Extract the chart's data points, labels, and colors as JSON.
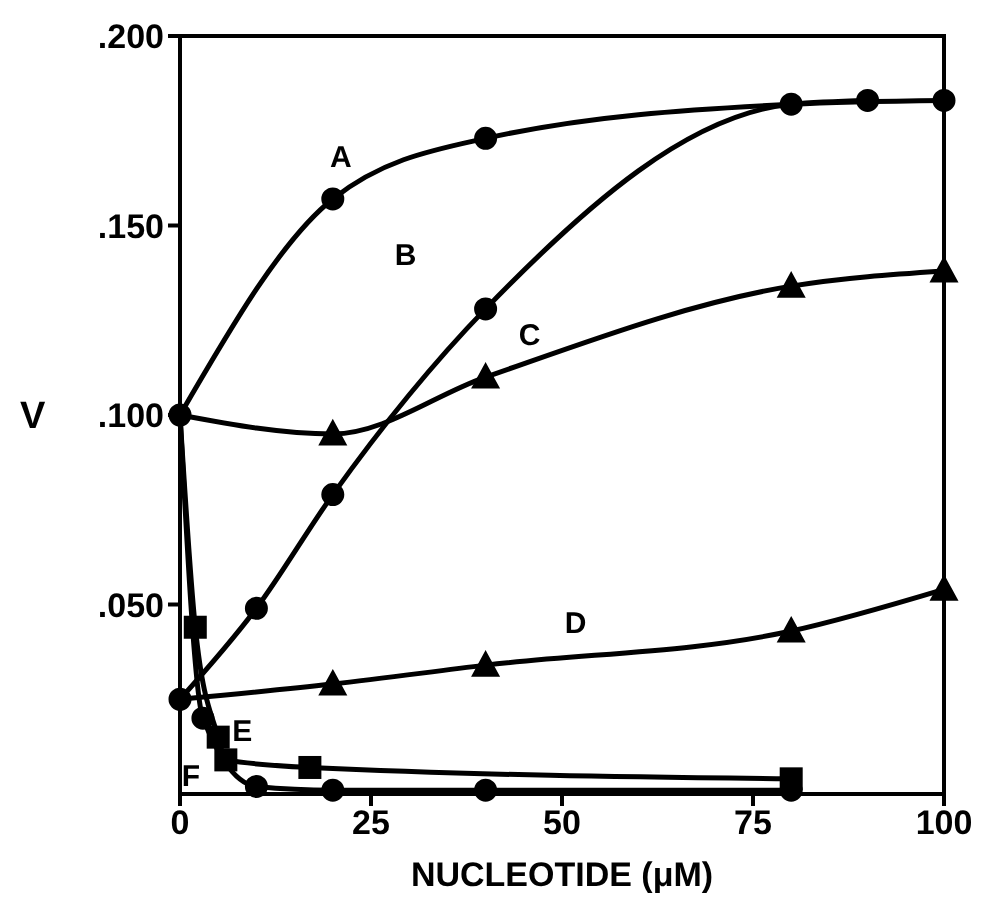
{
  "chart_data": {
    "type": "line",
    "xlabel": "NUCLEOTIDE (μM)",
    "ylabel": "V",
    "xlim": [
      0,
      100
    ],
    "ylim": [
      0,
      0.2
    ],
    "xticks": [
      0,
      25,
      50,
      75,
      100
    ],
    "yticks": [
      {
        "value": 0.05,
        "label": ".050"
      },
      {
        "value": 0.1,
        "label": ".100"
      },
      {
        "value": 0.15,
        "label": ".150"
      },
      {
        "value": 0.2,
        "label": ".200"
      }
    ],
    "grid": false,
    "legend": false,
    "line_style": "solid",
    "series": [
      {
        "name": "A",
        "color": "#000000",
        "marker": "circle",
        "x": [
          0,
          20,
          40,
          80,
          100
        ],
        "values": [
          0.1,
          0.157,
          0.173,
          0.182,
          0.183
        ]
      },
      {
        "name": "B",
        "color": "#000000",
        "marker": "circle",
        "x": [
          0,
          10,
          20,
          40,
          80,
          90
        ],
        "values": [
          0.025,
          0.049,
          0.079,
          0.128,
          0.182,
          0.183
        ]
      },
      {
        "name": "C",
        "color": "#000000",
        "marker": "triangle",
        "x": [
          0,
          20,
          40,
          80,
          100
        ],
        "values": [
          0.1,
          0.095,
          0.11,
          0.134,
          0.138
        ]
      },
      {
        "name": "D",
        "color": "#000000",
        "marker": "triangle",
        "x": [
          0,
          20,
          40,
          80,
          100
        ],
        "values": [
          0.025,
          0.029,
          0.034,
          0.043,
          0.054
        ]
      },
      {
        "name": "E",
        "color": "#000000",
        "marker": "square",
        "x": [
          0,
          2,
          5,
          6,
          17,
          80
        ],
        "values": [
          0.1,
          0.044,
          0.015,
          0.009,
          0.007,
          0.004
        ]
      },
      {
        "name": "F",
        "color": "#000000",
        "marker": "circle",
        "x": [
          0,
          3,
          10,
          20,
          40,
          80
        ],
        "values": [
          0.1,
          0.02,
          0.002,
          0.001,
          0.001,
          0.001
        ]
      }
    ]
  }
}
